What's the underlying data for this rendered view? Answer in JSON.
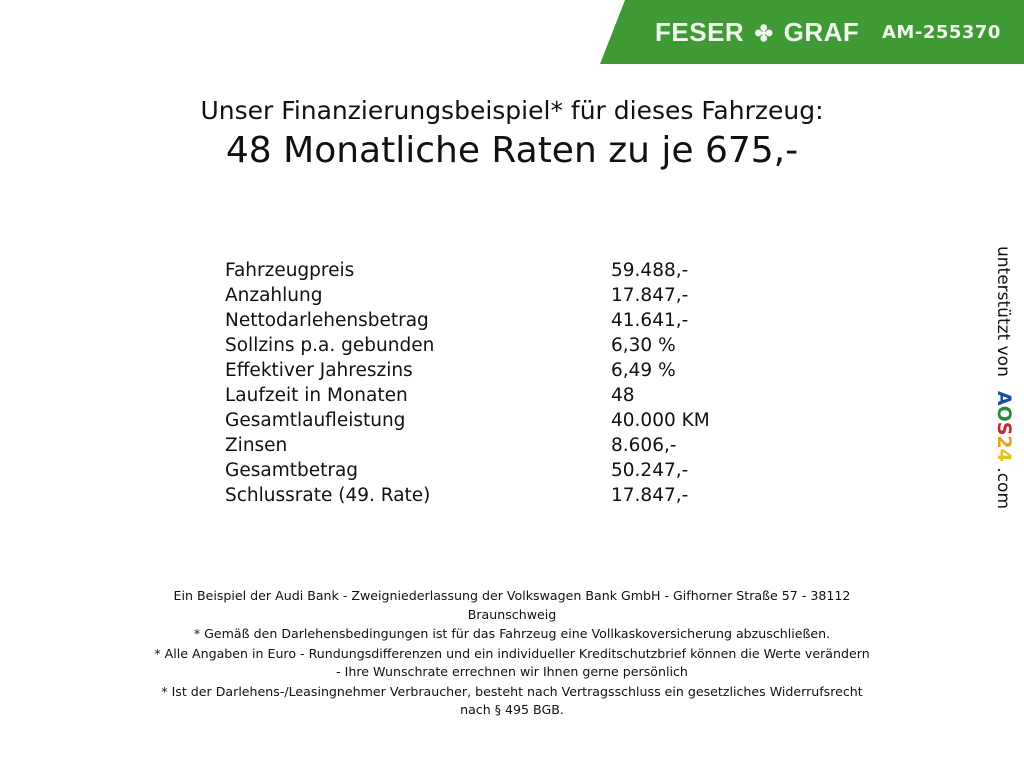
{
  "header": {
    "brand_left": "FESER",
    "brand_right": "GRAF",
    "logo_icon": "clover-icon",
    "ad_code": "AM-255370",
    "brand_color": "#3f9a36"
  },
  "title": {
    "line1": "Unser Finanzierungsbeispiel* für dieses Fahrzeug:",
    "line2": "48 Monatliche Raten zu je 675,-"
  },
  "rows": [
    {
      "label": "Fahrzeugpreis",
      "value": "59.488,-"
    },
    {
      "label": "Anzahlung",
      "value": "17.847,-"
    },
    {
      "label": "Nettodarlehensbetrag",
      "value": "41.641,-"
    },
    {
      "label": "Sollzins p.a. gebunden",
      "value": "6,30 %"
    },
    {
      "label": "Effektiver Jahreszins",
      "value": "6,49 %"
    },
    {
      "label": "Laufzeit in Monaten",
      "value": "48"
    },
    {
      "label": "Gesamtlaufleistung",
      "value": "40.000 KM"
    },
    {
      "label": "Zinsen",
      "value": "8.606,-"
    },
    {
      "label": "Gesamtbetrag",
      "value": "50.247,-"
    },
    {
      "label": "Schlussrate (49. Rate)",
      "value": "17.847,-"
    }
  ],
  "side": {
    "text": "unterstützt von",
    "logo": [
      "A",
      "O",
      "S",
      "2",
      "4"
    ],
    "suffix": ".com"
  },
  "footer": [
    "Ein Beispiel der Audi Bank - Zweigniederlassung der Volkswagen Bank GmbH - Gifhorner Straße 57 - 38112",
    "Braunschweig",
    "* Gemäß den Darlehensbedingungen ist für das Fahrzeug eine Vollkaskoversicherung abzuschließen.",
    "* Alle Angaben in Euro - Rundungsdifferenzen und ein individueller Kreditschutzbrief können die Werte verändern",
    "- Ihre Wunschrate errechnen wir Ihnen gerne persönlich",
    "* Ist der Darlehens-/Leasingnehmer Verbraucher, besteht nach Vertragsschluss ein gesetzliches Widerrufsrecht",
    "nach § 495 BGB."
  ]
}
